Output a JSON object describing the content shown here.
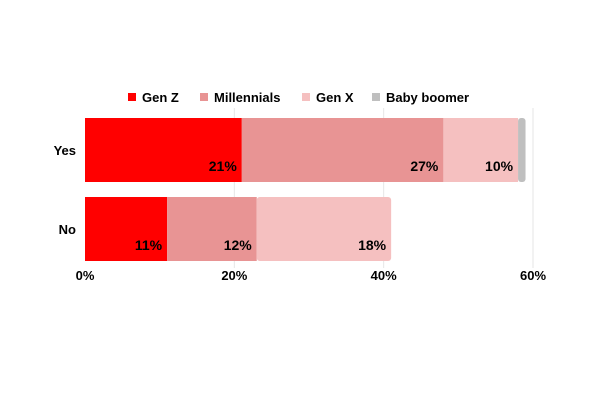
{
  "chart_data": {
    "type": "bar",
    "orientation": "horizontal",
    "stacked": true,
    "categories": [
      "Yes",
      "No"
    ],
    "series": [
      {
        "name": "Gen Z",
        "values": [
          21,
          11
        ],
        "labels": [
          "21%",
          "11%"
        ]
      },
      {
        "name": "Millennials",
        "values": [
          27,
          12
        ],
        "labels": [
          "27%",
          "12%"
        ]
      },
      {
        "name": "Gen X",
        "values": [
          10,
          18
        ],
        "labels": [
          "10%",
          "18%"
        ]
      },
      {
        "name": "Baby boomer",
        "values": [
          1,
          0
        ],
        "labels": [
          "",
          ""
        ]
      }
    ],
    "colors": [
      "#ff0000",
      "#e89494",
      "#f5c0c0",
      "#bfbfbf"
    ],
    "xlim": [
      0,
      60
    ],
    "xticks": [
      0,
      20,
      40,
      60
    ],
    "xtick_labels": [
      "0%",
      "20%",
      "40%",
      "60%"
    ],
    "grid": true,
    "legend_position": "top",
    "title": "",
    "xlabel": "",
    "ylabel": ""
  }
}
